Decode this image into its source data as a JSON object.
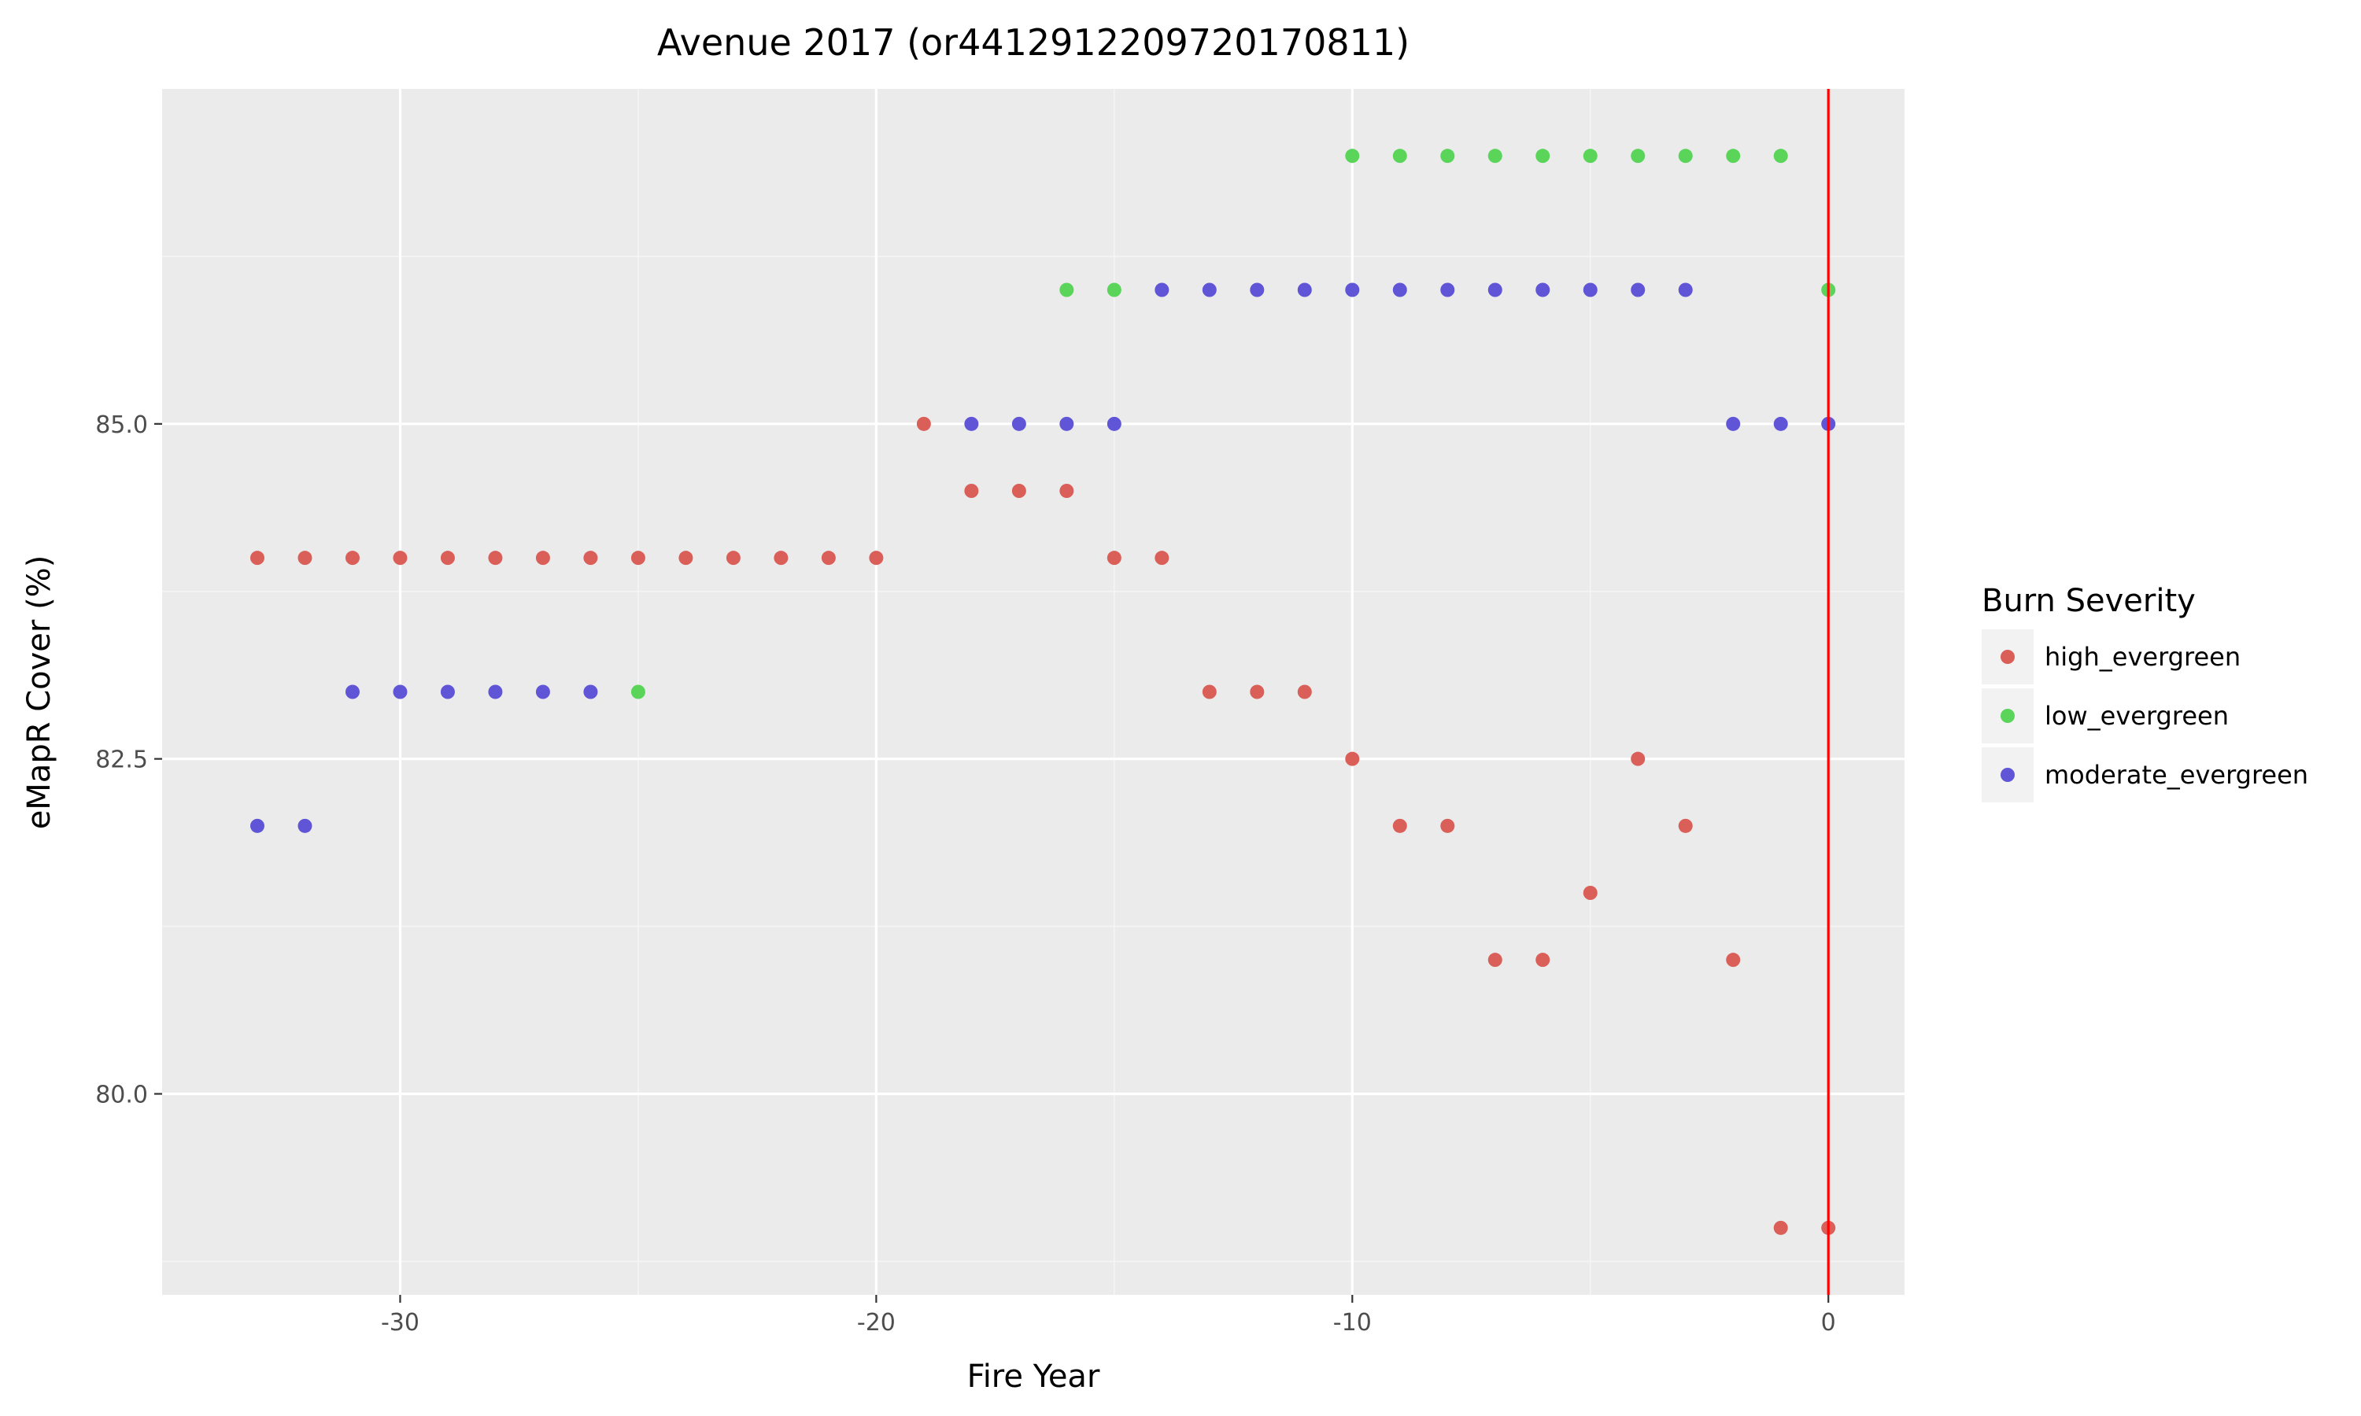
{
  "chart_data": {
    "type": "scatter",
    "title": "Avenue 2017 (or4412912209720170811)",
    "xlabel": "Fire Year",
    "ylabel": "eMapR Cover (%)",
    "xlim": [
      -35,
      1.6
    ],
    "ylim": [
      78.5,
      87.5
    ],
    "x_ticks": [
      -30,
      -20,
      -10,
      0
    ],
    "x_tick_labels": [
      "-30",
      "-20",
      "-10",
      "0"
    ],
    "y_ticks": [
      80.0,
      82.5,
      85.0
    ],
    "y_tick_labels": [
      "80.0",
      "82.5",
      "85.0"
    ],
    "grid": true,
    "vline": {
      "x": 0,
      "color": "#ff0000"
    },
    "legend": {
      "title": "Burn Severity",
      "placement": "right"
    },
    "series": [
      {
        "name": "high_evergreen",
        "color": "#d95f58",
        "x": [
          -33,
          -32,
          -31,
          -30,
          -29,
          -28,
          -27,
          -26,
          -25,
          -24,
          -23,
          -22,
          -21,
          -20,
          -19,
          -18,
          -17,
          -16,
          -15,
          -14,
          -13,
          -12,
          -11,
          -10,
          -9,
          -8,
          -7,
          -6,
          -5,
          -4,
          -3,
          -2,
          -1,
          0
        ],
        "y": [
          84,
          84,
          84,
          84,
          84,
          84,
          84,
          84,
          84,
          84,
          84,
          84,
          84,
          84,
          85,
          84.5,
          84.5,
          84.5,
          84,
          84,
          83,
          83,
          83,
          82.5,
          82,
          82,
          81,
          81,
          81.5,
          82.5,
          82,
          81,
          79,
          79
        ]
      },
      {
        "name": "low_evergreen",
        "color": "#5ad55a",
        "x": [
          -25,
          -16,
          -15,
          -10,
          -9,
          -8,
          -7,
          -6,
          -5,
          -4,
          -3,
          -2,
          -1,
          0
        ],
        "y": [
          83,
          86,
          86,
          87,
          87,
          87,
          87,
          87,
          87,
          87,
          87,
          87,
          87,
          86
        ]
      },
      {
        "name": "moderate_evergreen",
        "color": "#5f55d6",
        "x": [
          -33,
          -32,
          -31,
          -30,
          -29,
          -28,
          -27,
          -26,
          -18,
          -17,
          -16,
          -15,
          -14,
          -13,
          -12,
          -11,
          -10,
          -9,
          -8,
          -7,
          -6,
          -5,
          -4,
          -3,
          -2,
          -1,
          0
        ],
        "y": [
          82,
          82,
          83,
          83,
          83,
          83,
          83,
          83,
          85,
          85,
          85,
          85,
          86,
          86,
          86,
          86,
          86,
          86,
          86,
          86,
          86,
          86,
          86,
          86,
          85,
          85,
          85
        ]
      }
    ]
  }
}
